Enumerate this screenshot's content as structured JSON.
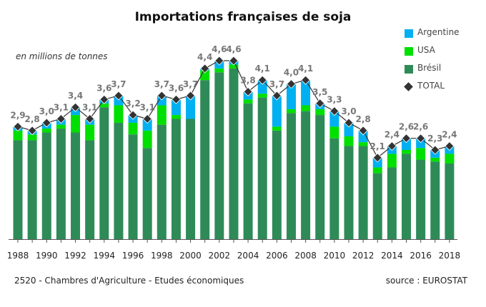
{
  "header": {
    "title": "Importations françaises de soja",
    "unit_note": "en millions de tonnes"
  },
  "footer": {
    "left": "2520 - Chambres d'Agriculture - Etudes économiques",
    "right": "source : EUROSTAT"
  },
  "legend": [
    {
      "label": "Argentine",
      "color": "#00b0f0",
      "marker": "square"
    },
    {
      "label": "USA",
      "color": "#00e000",
      "marker": "square"
    },
    {
      "label": "Brésil",
      "color": "#2e8b57",
      "marker": "square"
    },
    {
      "label": "TOTAL",
      "color": "#333333",
      "marker": "diamond"
    }
  ],
  "chart_data": {
    "type": "bar",
    "stacked": true,
    "title": "Importations françaises de soja",
    "ylabel": "en millions de tonnes",
    "ylim": [
      0,
      5.3
    ],
    "x": [
      1988,
      1989,
      1990,
      1991,
      1992,
      1993,
      1994,
      1995,
      1996,
      1997,
      1998,
      1999,
      2000,
      2001,
      2002,
      2003,
      2004,
      2005,
      2006,
      2007,
      2008,
      2009,
      2010,
      2011,
      2012,
      2013,
      2014,
      2015,
      2016,
      2017,
      2018
    ],
    "x_tick_labels": [
      "1988",
      "1990",
      "1992",
      "1994",
      "1996",
      "1998",
      "2000",
      "2002",
      "2004",
      "2006",
      "2008",
      "2010",
      "2012",
      "2014",
      "2016",
      "2018"
    ],
    "total_labels": [
      "2,9",
      "2,8",
      "3,0",
      "3,1",
      "3,4",
      "3,1",
      "3,6",
      "3,7",
      "3,2",
      "3,1",
      "3,7",
      "3,6",
      "3,7",
      "4,4",
      "4,6",
      "4,6",
      "3,8",
      "4,1",
      "3,7",
      "4,0",
      "4,1",
      "3,5",
      "3,3",
      "3,0",
      "2,8",
      "2,1",
      "2,4",
      "2,6",
      "2,6",
      "2,3",
      "2,4"
    ],
    "series": [
      {
        "name": "Brésil",
        "color": "#2e8b57",
        "values": [
          2.55,
          2.55,
          2.75,
          2.85,
          2.75,
          2.55,
          3.4,
          3.0,
          2.7,
          2.35,
          2.95,
          3.1,
          3.1,
          4.1,
          4.3,
          4.4,
          3.5,
          3.65,
          2.8,
          3.25,
          3.3,
          3.2,
          2.6,
          2.4,
          2.4,
          1.7,
          1.85,
          2.2,
          2.05,
          2.0,
          1.95
        ]
      },
      {
        "name": "USA",
        "color": "#00e000",
        "values": [
          0.25,
          0.15,
          0.1,
          0.1,
          0.45,
          0.4,
          0.1,
          0.45,
          0.3,
          0.45,
          0.5,
          0.1,
          0.0,
          0.25,
          0.1,
          0.1,
          0.1,
          0.1,
          0.1,
          0.1,
          0.15,
          0.15,
          0.3,
          0.25,
          0.1,
          0.15,
          0.35,
          0.1,
          0.3,
          0.1,
          0.25
        ]
      },
      {
        "name": "Argentine",
        "color": "#00b0f0",
        "values": [
          0.1,
          0.1,
          0.15,
          0.15,
          0.2,
          0.15,
          0.1,
          0.25,
          0.2,
          0.3,
          0.25,
          0.4,
          0.6,
          0.05,
          0.2,
          0.1,
          0.2,
          0.35,
          0.8,
          0.65,
          0.65,
          0.15,
          0.4,
          0.35,
          0.3,
          0.25,
          0.2,
          0.3,
          0.25,
          0.2,
          0.2
        ]
      }
    ],
    "total": [
      2.9,
      2.8,
      3.0,
      3.1,
      3.4,
      3.1,
      3.6,
      3.7,
      3.2,
      3.1,
      3.7,
      3.6,
      3.7,
      4.4,
      4.6,
      4.6,
      3.8,
      4.1,
      3.7,
      4.0,
      4.1,
      3.5,
      3.3,
      3.0,
      2.8,
      2.1,
      2.4,
      2.6,
      2.6,
      2.3,
      2.4
    ],
    "grid": false,
    "legend_position": "top-right"
  }
}
